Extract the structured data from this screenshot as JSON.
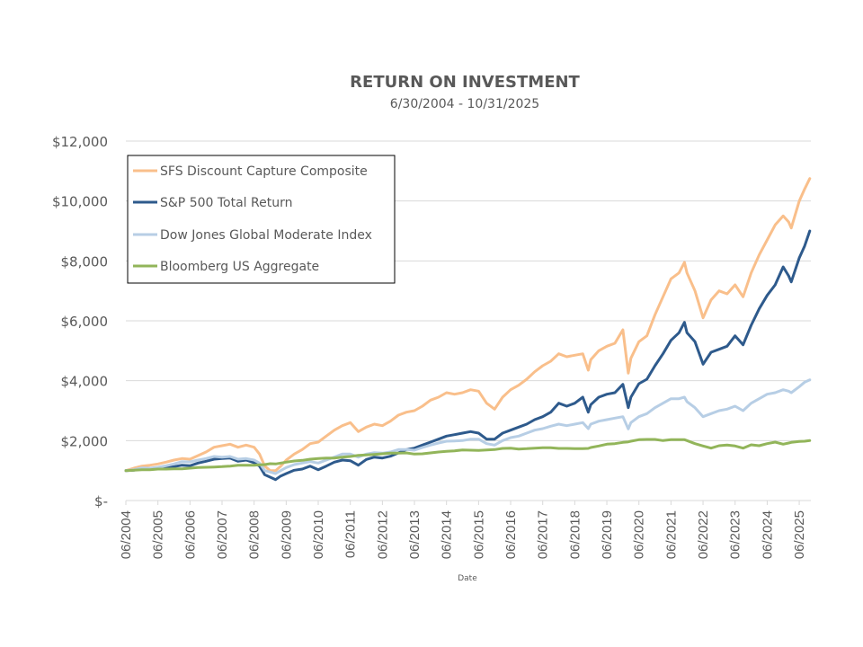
{
  "chart_data": {
    "type": "line",
    "title": "RETURN ON INVESTMENT",
    "subtitle": "6/30/2004 - 10/31/2025",
    "xlabel": "Date",
    "ylabel": "",
    "ylim": [
      0,
      12000
    ],
    "xlim": [
      2004.5,
      2025.83
    ],
    "grid": true,
    "legend_position": "top-left",
    "yticks": [
      {
        "value": 0,
        "label": "$-"
      },
      {
        "value": 2000,
        "label": "$2,000"
      },
      {
        "value": 4000,
        "label": "$4,000"
      },
      {
        "value": 6000,
        "label": "$6,000"
      },
      {
        "value": 8000,
        "label": "$8,000"
      },
      {
        "value": 10000,
        "label": "$10,000"
      },
      {
        "value": 12000,
        "label": "$12,000"
      }
    ],
    "xticks": [
      {
        "value": 2004.5,
        "label": "06/2004"
      },
      {
        "value": 2005.5,
        "label": "06/2005"
      },
      {
        "value": 2006.5,
        "label": "06/2006"
      },
      {
        "value": 2007.5,
        "label": "06/2007"
      },
      {
        "value": 2008.5,
        "label": "06/2008"
      },
      {
        "value": 2009.5,
        "label": "06/2009"
      },
      {
        "value": 2010.5,
        "label": "06/2010"
      },
      {
        "value": 2011.5,
        "label": "06/2011"
      },
      {
        "value": 2012.5,
        "label": "06/2012"
      },
      {
        "value": 2013.5,
        "label": "06/2013"
      },
      {
        "value": 2014.5,
        "label": "06/2014"
      },
      {
        "value": 2015.5,
        "label": "06/2015"
      },
      {
        "value": 2016.5,
        "label": "06/2016"
      },
      {
        "value": 2017.5,
        "label": "06/2017"
      },
      {
        "value": 2018.5,
        "label": "06/2018"
      },
      {
        "value": 2019.5,
        "label": "06/2019"
      },
      {
        "value": 2020.5,
        "label": "06/2020"
      },
      {
        "value": 2021.5,
        "label": "06/2021"
      },
      {
        "value": 2022.5,
        "label": "06/2022"
      },
      {
        "value": 2023.5,
        "label": "06/2023"
      },
      {
        "value": 2024.5,
        "label": "06/2024"
      },
      {
        "value": 2025.5,
        "label": "06/2025"
      }
    ],
    "x": [
      2004.5,
      2004.75,
      2005.0,
      2005.25,
      2005.5,
      2005.75,
      2006.0,
      2006.25,
      2006.5,
      2006.75,
      2007.0,
      2007.25,
      2007.5,
      2007.75,
      2008.0,
      2008.25,
      2008.5,
      2008.67,
      2008.83,
      2009.0,
      2009.17,
      2009.33,
      2009.5,
      2009.75,
      2010.0,
      2010.25,
      2010.5,
      2010.75,
      2011.0,
      2011.25,
      2011.5,
      2011.75,
      2012.0,
      2012.25,
      2012.5,
      2012.75,
      2013.0,
      2013.25,
      2013.5,
      2013.75,
      2014.0,
      2014.25,
      2014.5,
      2014.75,
      2015.0,
      2015.25,
      2015.5,
      2015.75,
      2016.0,
      2016.25,
      2016.5,
      2016.75,
      2017.0,
      2017.25,
      2017.5,
      2017.75,
      2018.0,
      2018.25,
      2018.5,
      2018.75,
      2018.92,
      2019.0,
      2019.25,
      2019.5,
      2019.75,
      2020.0,
      2020.17,
      2020.25,
      2020.5,
      2020.75,
      2021.0,
      2021.25,
      2021.5,
      2021.75,
      2021.92,
      2022.0,
      2022.25,
      2022.5,
      2022.75,
      2023.0,
      2023.25,
      2023.5,
      2023.75,
      2024.0,
      2024.25,
      2024.5,
      2024.75,
      2025.0,
      2025.17,
      2025.25,
      2025.5,
      2025.67,
      2025.83
    ],
    "series": [
      {
        "name": "SFS Discount Capture Composite",
        "color": "#F9BF8B",
        "values": [
          1000,
          1080,
          1150,
          1180,
          1220,
          1280,
          1350,
          1400,
          1380,
          1500,
          1620,
          1780,
          1830,
          1880,
          1780,
          1850,
          1780,
          1550,
          1150,
          1000,
          1000,
          1150,
          1350,
          1550,
          1700,
          1900,
          1950,
          2150,
          2350,
          2500,
          2600,
          2300,
          2450,
          2550,
          2500,
          2650,
          2850,
          2950,
          3000,
          3150,
          3350,
          3450,
          3600,
          3550,
          3600,
          3700,
          3650,
          3250,
          3050,
          3450,
          3700,
          3850,
          4050,
          4300,
          4500,
          4650,
          4900,
          4800,
          4850,
          4900,
          4350,
          4700,
          5000,
          5150,
          5250,
          5700,
          4250,
          4750,
          5300,
          5500,
          6200,
          6800,
          7400,
          7600,
          7950,
          7600,
          7000,
          6100,
          6700,
          7000,
          6900,
          7200,
          6800,
          7600,
          8200,
          8700,
          9200,
          9500,
          9300,
          9100,
          10000,
          10400,
          10750
        ]
      },
      {
        "name": "S&P 500 Total Return",
        "color": "#2E5A8C",
        "values": [
          1000,
          1010,
          1070,
          1040,
          1060,
          1100,
          1130,
          1180,
          1160,
          1250,
          1310,
          1380,
          1400,
          1420,
          1310,
          1350,
          1260,
          1150,
          860,
          780,
          700,
          820,
          900,
          1010,
          1050,
          1150,
          1030,
          1150,
          1280,
          1350,
          1330,
          1180,
          1370,
          1450,
          1420,
          1480,
          1590,
          1700,
          1750,
          1850,
          1950,
          2050,
          2150,
          2200,
          2250,
          2300,
          2250,
          2050,
          2050,
          2250,
          2350,
          2450,
          2550,
          2700,
          2800,
          2950,
          3250,
          3150,
          3250,
          3450,
          2950,
          3200,
          3450,
          3550,
          3600,
          3880,
          3100,
          3450,
          3900,
          4050,
          4500,
          4900,
          5350,
          5600,
          5950,
          5600,
          5300,
          4550,
          4950,
          5050,
          5150,
          5500,
          5200,
          5850,
          6400,
          6850,
          7200,
          7800,
          7500,
          7300,
          8100,
          8500,
          9000
        ]
      },
      {
        "name": "Dow Jones Global Moderate Index",
        "color": "#B7CEE5",
        "values": [
          1000,
          1030,
          1090,
          1080,
          1110,
          1160,
          1220,
          1300,
          1290,
          1350,
          1400,
          1470,
          1450,
          1470,
          1380,
          1400,
          1350,
          1250,
          1000,
          950,
          900,
          1000,
          1100,
          1200,
          1250,
          1300,
          1250,
          1350,
          1450,
          1550,
          1550,
          1450,
          1550,
          1600,
          1580,
          1620,
          1700,
          1700,
          1680,
          1770,
          1850,
          1920,
          1980,
          1990,
          2000,
          2050,
          2050,
          1900,
          1850,
          2000,
          2100,
          2150,
          2250,
          2350,
          2400,
          2480,
          2550,
          2500,
          2550,
          2600,
          2400,
          2550,
          2650,
          2700,
          2750,
          2800,
          2390,
          2600,
          2800,
          2900,
          3100,
          3250,
          3400,
          3400,
          3450,
          3300,
          3100,
          2800,
          2900,
          3000,
          3050,
          3150,
          3000,
          3250,
          3400,
          3550,
          3600,
          3700,
          3650,
          3600,
          3800,
          3950,
          4030
        ]
      },
      {
        "name": "Bloomberg US Aggregate",
        "color": "#92B55A",
        "values": [
          1000,
          1010,
          1030,
          1030,
          1050,
          1050,
          1060,
          1060,
          1080,
          1100,
          1110,
          1120,
          1130,
          1150,
          1180,
          1180,
          1180,
          1190,
          1200,
          1230,
          1220,
          1250,
          1280,
          1320,
          1340,
          1380,
          1400,
          1420,
          1420,
          1450,
          1470,
          1510,
          1520,
          1540,
          1560,
          1580,
          1580,
          1590,
          1550,
          1560,
          1590,
          1620,
          1640,
          1660,
          1690,
          1680,
          1670,
          1690,
          1700,
          1740,
          1750,
          1720,
          1730,
          1750,
          1760,
          1760,
          1740,
          1740,
          1730,
          1730,
          1740,
          1770,
          1820,
          1880,
          1900,
          1940,
          1960,
          1980,
          2030,
          2040,
          2040,
          2000,
          2030,
          2030,
          2030,
          2000,
          1900,
          1820,
          1750,
          1830,
          1850,
          1820,
          1750,
          1860,
          1830,
          1900,
          1950,
          1880,
          1920,
          1940,
          1970,
          1980,
          2000
        ]
      }
    ]
  }
}
